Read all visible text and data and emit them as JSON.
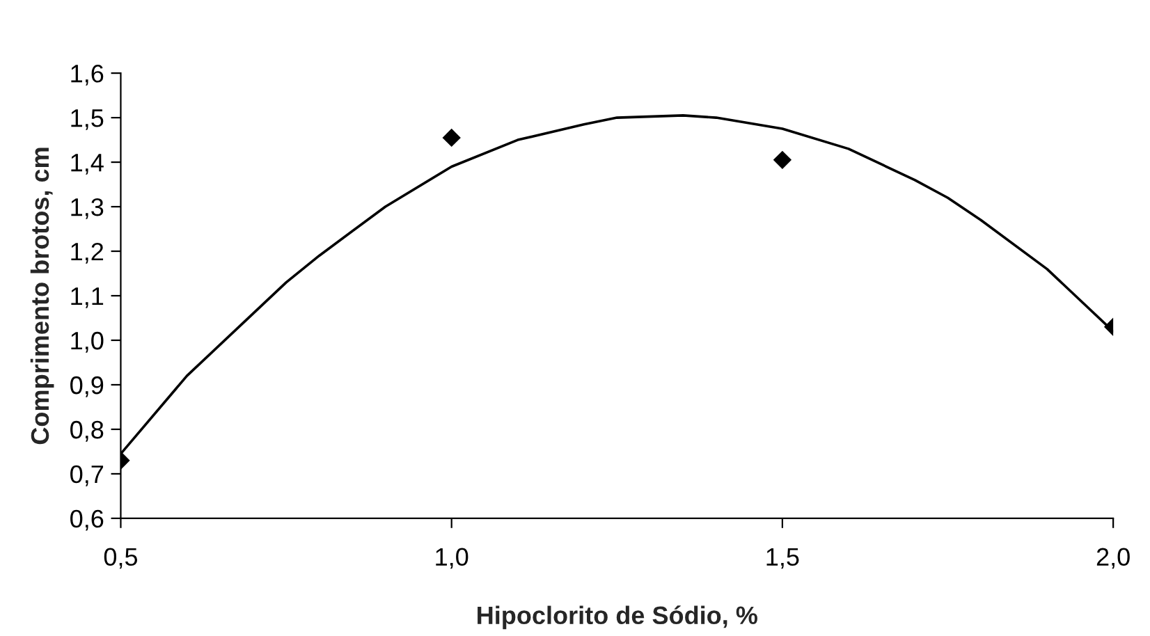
{
  "chart_data": {
    "type": "scatter",
    "xlabel": "Hipoclorito de Sódio, %",
    "ylabel": "Comprimento brotos, cm",
    "xlim": [
      0.5,
      2.0
    ],
    "xticks": [
      {
        "value": 0.5,
        "label": "0,5"
      },
      {
        "value": 1.0,
        "label": "1,0"
      },
      {
        "value": 1.5,
        "label": "1,5"
      },
      {
        "value": 2.0,
        "label": "2,0"
      }
    ],
    "ylim": [
      0.6,
      1.6
    ],
    "yticks": [
      {
        "value": 0.6,
        "label": "0,6"
      },
      {
        "value": 0.7,
        "label": "0,7"
      },
      {
        "value": 0.8,
        "label": "0,8"
      },
      {
        "value": 0.9,
        "label": "0,9"
      },
      {
        "value": 1.0,
        "label": "1,0"
      },
      {
        "value": 1.1,
        "label": "1,1"
      },
      {
        "value": 1.2,
        "label": "1,2"
      },
      {
        "value": 1.3,
        "label": "1,3"
      },
      {
        "value": 1.4,
        "label": "1,4"
      },
      {
        "value": 1.5,
        "label": "1,5"
      },
      {
        "value": 1.6,
        "label": "1,6"
      }
    ],
    "grid": false,
    "legend": false,
    "series": [
      {
        "color": "#000000",
        "marker": "diamond",
        "x": [
          0.5,
          1.0,
          1.5,
          2.0
        ],
        "values": [
          0.73,
          1.455,
          1.405,
          1.03
        ]
      },
      {
        "type": "line",
        "color": "#000000",
        "marker": "none",
        "line_style": "solid",
        "x": [
          0.5,
          0.6,
          0.7,
          0.75,
          0.8,
          0.9,
          1.0,
          1.1,
          1.2,
          1.25,
          1.35,
          1.4,
          1.5,
          1.6,
          1.7,
          1.75,
          1.8,
          1.9,
          2.0
        ],
        "values": [
          0.745,
          0.92,
          1.06,
          1.13,
          1.19,
          1.3,
          1.39,
          1.45,
          1.485,
          1.5,
          1.505,
          1.5,
          1.475,
          1.43,
          1.36,
          1.32,
          1.27,
          1.16,
          1.02
        ]
      }
    ]
  }
}
